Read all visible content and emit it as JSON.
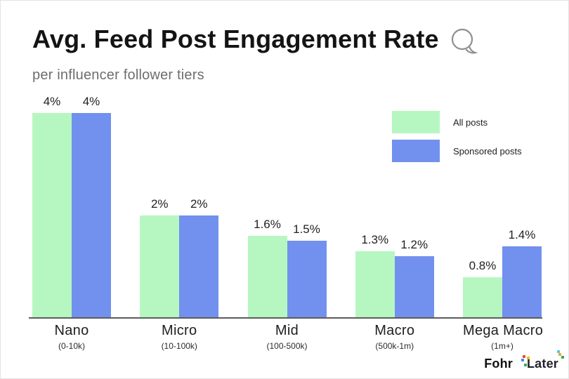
{
  "title": "Avg. Feed Post Engagement Rate",
  "subtitle": "per influencer follower tiers",
  "legend": [
    {
      "label": "All posts",
      "color": "#b6f7c1"
    },
    {
      "label": "Sponsored posts",
      "color": "#7290ee"
    }
  ],
  "footer": {
    "brand1": "Fohr",
    "brand2": "Later"
  },
  "colors": {
    "axis": "#5c5c5c",
    "title": "#141414",
    "subtitle": "#6e6e6e"
  },
  "chart_data": {
    "type": "bar",
    "categories": [
      "Nano",
      "Micro",
      "Mid",
      "Macro",
      "Mega Macro"
    ],
    "category_sublabels": [
      "(0-10k)",
      "(10-100k)",
      "(100-500k)",
      "(500k-1m)",
      "(1m+)"
    ],
    "series": [
      {
        "name": "All posts",
        "color": "#b6f7c1",
        "values": [
          4,
          2,
          1.6,
          1.3,
          0.8
        ],
        "labels": [
          "4%",
          "2%",
          "1.6%",
          "1.3%",
          "0.8%"
        ]
      },
      {
        "name": "Sponsored posts",
        "color": "#7290ee",
        "values": [
          4,
          2,
          1.5,
          1.2,
          1.4
        ],
        "labels": [
          "4%",
          "2%",
          "1.5%",
          "1.2%",
          "1.4%"
        ]
      }
    ],
    "title": "Avg. Feed Post Engagement Rate",
    "subtitle": "per influencer follower tiers",
    "xlabel": "",
    "ylabel": "",
    "value_suffix": "%",
    "ylim": [
      0,
      4.4
    ],
    "grid": false,
    "legend_position": "top-right"
  }
}
